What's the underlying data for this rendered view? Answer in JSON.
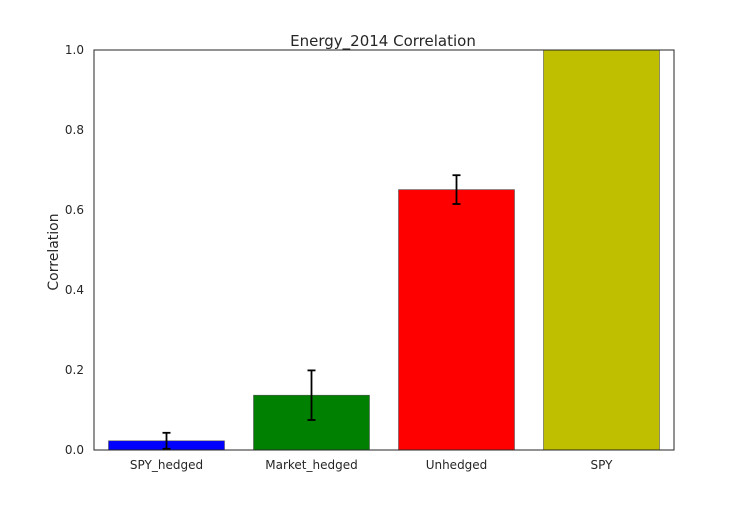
{
  "chart_data": {
    "type": "bar",
    "title": "Energy_2014 Correlation",
    "xlabel": "",
    "ylabel": "Correlation",
    "ylim": [
      0,
      1.0
    ],
    "yticks": [
      "0.0",
      "0.2",
      "0.4",
      "0.6",
      "0.8",
      "1.0"
    ],
    "categories": [
      "SPY_hedged",
      "Market_hedged",
      "Unhedged",
      "SPY"
    ],
    "values": [
      0.023,
      0.137,
      0.651,
      1.0
    ],
    "errors": [
      0.02,
      0.062,
      0.036,
      null
    ],
    "colors": [
      "#0000ff",
      "#008000",
      "#ff0000",
      "#bfbf00"
    ],
    "grid": false,
    "legend": "none"
  }
}
